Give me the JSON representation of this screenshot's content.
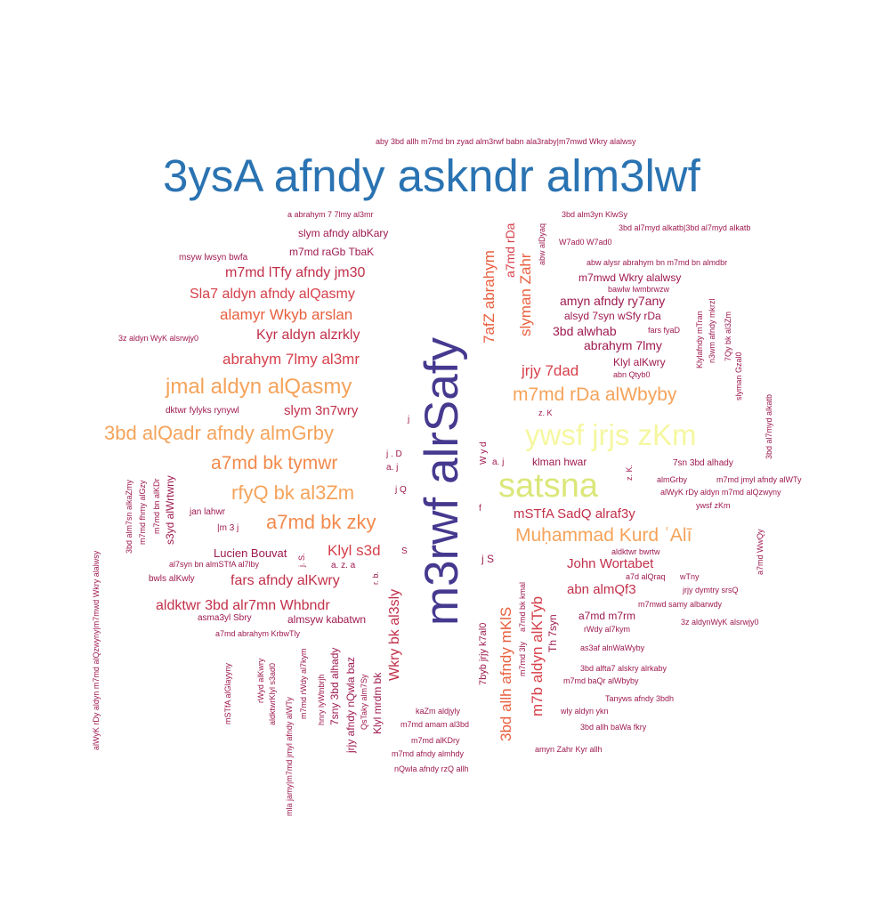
{
  "palette": {
    "blue": "#2a73b2",
    "indigo": "#45398f",
    "yellow": "#f5f7a0",
    "lime": "#dbe77a",
    "orange": "#f5a35a",
    "red": "#d6404b",
    "crimson": "#c2304a",
    "maroon": "#9e1a4f"
  },
  "words": {
    "w001": "3ysA afndy askndr alm3lwf",
    "w002": "m3rwf alrSafy",
    "w003": "satsna",
    "w004": "ywsf jrjs zKm",
    "w005": "aby 3bd allh m7md bn zyad alm3rwf babn ala3raby|m7mwd Wkry alalwsy",
    "w006": "a abrahym 7 7lmy al3mr",
    "w007": "slym afndy albKary",
    "w008": "m7md raGb TbaK",
    "w009": "msyw lwsyn bwfa",
    "w010": "m7md lTfy afndy jm30",
    "w011": "Sla7 aldyn afndy alQasmy",
    "w012": "alamyr Wkyb arslan",
    "w013": "Kyr aldyn alzrkly",
    "w014": "3z aldyn WyK alsrwjy0",
    "w015": "abrahym 7lmy al3mr",
    "w016": "jmal aldyn alQasmy",
    "w017": "dktwr fylyks rynywl",
    "w018": "slym 3n7wry",
    "w019": "3bd alQadr afndy almGrby",
    "w020": "a7md bk tymwr",
    "w021": "rfyQ bk al3Zm",
    "w022": "a7md bk zky",
    "w023": "jan lahwr",
    "w024": "|m 3 j",
    "w025": "Lucien Bouvat",
    "w026": "al7syn bn almSTfA al7lby",
    "w027": "bwls alKwly",
    "w028": "fars afndy alKwry",
    "w029": "aldktwr 3bd alr7mn Whbndr",
    "w030": "asma3yl Sbry",
    "w031": "almsyw kabatwn",
    "w032": "a7md abrahym KrbwTly",
    "w033": "Klyl s3d",
    "w034": "a. z. a",
    "w035": "j. S.",
    "w036": "r. b.",
    "w037": "S",
    "w038": "j . D",
    "w039": "a. j",
    "w040": "j Q",
    "w041": "j",
    "w042": "3bd alm3yn KlwSy",
    "w043": "3bd al7myd alkatb|3bd al7myd alkatb",
    "w044": "W7ad0 W7ad0",
    "w045": "abw alysr abrahym bn m7md bn almdbr",
    "w046": "m7mwd Wkry alalwsy",
    "w047": "bawlw lwmbrwzw",
    "w048": "amyn afndy ry7any",
    "w049": "alsyd 7syn wSfy rDa",
    "w050": "3bd alwhab",
    "w051": "fars fyaD",
    "w052": "abrahym 7lmy",
    "w053": "Klyl alKwry",
    "w054": "abn Qtyb0",
    "w055": "jrjy 7dad",
    "w056": "m7md rDa alWbyby",
    "w057": "z. K",
    "w058": "a. j",
    "w059": "klman hwar",
    "w060": "7sn 3bd alhady",
    "w061": "almGrby",
    "w062": "m7md jmyl afndy alWTy",
    "w063": "alWyK rDy aldyn m7md alQzwyny",
    "w064": "ywsf zKm",
    "w065": "mSTfA SadQ alraf3y",
    "w066": "Muḥammad Kurd ʿAlī",
    "w067": "aldktwr bwrtw",
    "w068": "John Wortabet",
    "w069": "a7d alQraq",
    "w070": "wTny",
    "w071": "abn almQf3",
    "w072": "jrjy dymtry srsQ",
    "w073": "m7mwd samy albarwdy",
    "w074": "a7md m7rm",
    "w075": "3z aldynWyK alsrwjy0",
    "w076": "rWdy al7kym",
    "w077": "as3af alnWaWyby",
    "w078": "3bd alfta7 alskry alrkaby",
    "w079": "m7md baQr alWbyby",
    "w080": "Tanyws afndy 3bdh",
    "w081": "wly aldyn ykn",
    "w082": "3bd allh baWa fkry",
    "w083": "amyn Zahr Kyr allh",
    "w084": "kaZm aldjyly",
    "w085": "m7md amam al3bd",
    "w086": "m7md alKDry",
    "w087": "m7md afndy almhdy",
    "w088": "nQwla afndy rzQ allh",
    "w089": "j S",
    "w090": "f",
    "w091": "7afZ abrahym",
    "w092": "a7md rDa",
    "w093": "slyman Zahr",
    "w094": "abw alDyaq",
    "w095": "Wkry bk al3sly",
    "w096": "3bd allh afndy mKlS",
    "w097": "m7b aldyn alKTyb",
    "w098": "7byb jrjy k7al0",
    "w099": "m7md 3ly",
    "w100": "a7md bk kmal",
    "w101": "Th 7syn",
    "w102": "W y d",
    "w103": "z. K.",
    "w104": "Klylafndy mTran",
    "w105": "n3wm afndy mkrzl",
    "w106": "7Qy bk al3Zm",
    "w107": "slyman Gzal0",
    "w108": "3bd al7myd alkatb",
    "w109": "a7md WwQy",
    "w110": "3bd alm7sn alkaZmy",
    "w111": "m7md fhmy alGzy",
    "w112": "m7md bn alKDr",
    "w113": "s3yd alWrtwny",
    "w114": "alWyK rDy aldyn m7md alQzwyny|m7mwd Wkry alalwsy",
    "w115": "mSTfA alGlayyny",
    "w116": "rWyd alKwry",
    "w117": "aldktwrKlyl s3ad0",
    "w118": "mla jamy|m7md jmyl afndy alWTy",
    "w119": "m7md rWdy al7kym",
    "w120": "hnry lyWtnbrjh",
    "w121": "7sny 3bd alhady",
    "w122": "jrjy afndy nQwla baz",
    "w123": "QsTaky alm7Sy",
    "w124": "Klyl mrdm bk"
  }
}
